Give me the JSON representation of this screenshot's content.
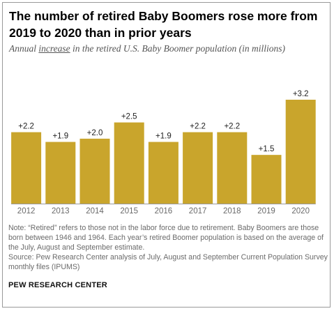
{
  "header": {
    "title": "The number of retired Baby Boomers rose more from 2019 to 2020 than in prior years",
    "subtitle_before": "Annual ",
    "subtitle_underlined": "increase",
    "subtitle_after": " in the retired U.S. Baby Boomer population (in millions)"
  },
  "footer": {
    "note": "Note: “Retired” refers to those not in the labor force due to retirement. Baby Boomers are those born between 1946 and 1964. Each year’s retired Boomer population is based on the average of the July, August and September estimate.",
    "source": "Source: Pew Research Center analysis of July, August and September Current Population Survey monthly files (IPUMS)",
    "brand": "PEW RESEARCH CENTER"
  },
  "colors": {
    "bar": "#c9a52c",
    "axis_text": "#6a6a6a",
    "baseline": "#9a9a9a"
  },
  "chart_data": {
    "type": "bar",
    "categories": [
      "2012",
      "2013",
      "2014",
      "2015",
      "2016",
      "2017",
      "2018",
      "2019",
      "2020"
    ],
    "values": [
      2.2,
      1.9,
      2.0,
      2.5,
      1.9,
      2.2,
      2.2,
      1.5,
      3.2
    ],
    "data_labels": [
      "+2.2",
      "+1.9",
      "+2.0",
      "+2.5",
      "+1.9",
      "+2.2",
      "+2.2",
      "+1.5",
      "+3.2"
    ],
    "ylim": [
      0,
      3.2
    ],
    "grid": false,
    "legend": "none"
  }
}
